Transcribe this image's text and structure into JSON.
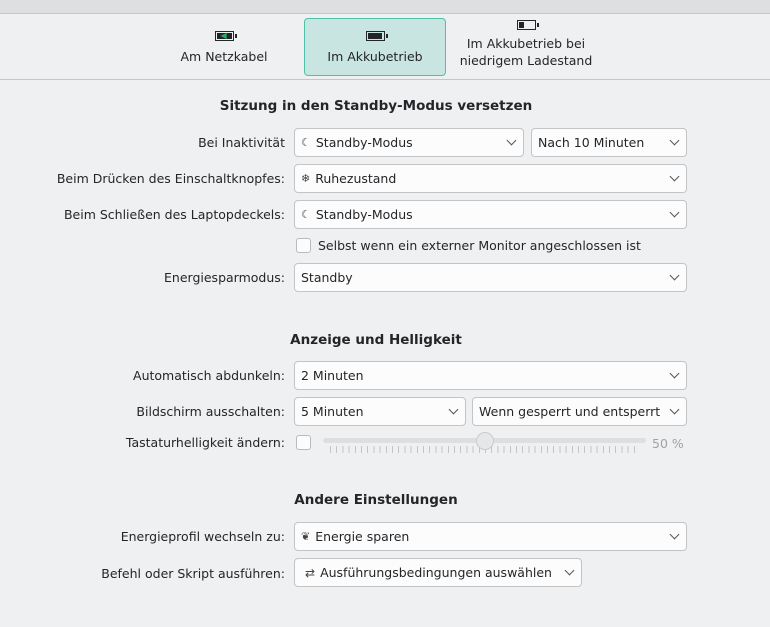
{
  "tabs": [
    {
      "label": "Am Netzkabel",
      "icon": "battery-charging-icon",
      "active": false
    },
    {
      "label": "Im Akkubetrieb",
      "icon": "battery-full-icon",
      "active": true
    },
    {
      "label": "Im Akkubetrieb bei niedrigem Ladestand",
      "icon": "battery-low-icon",
      "active": false
    }
  ],
  "sections": {
    "suspend": {
      "title": "Sitzung in den Standby-Modus versetzen",
      "inactivity_label": "Bei Inaktivität",
      "inactivity_action": "Standby-Modus",
      "inactivity_delay": "Nach 10 Minuten",
      "power_button_label": "Beim Drücken des Einschaltknopfes:",
      "power_button_action": "Ruhezustand",
      "lid_label": "Beim Schließen des Laptopdeckels:",
      "lid_action": "Standby-Modus",
      "external_monitor_label": "Selbst wenn ein externer Monitor angeschlossen ist",
      "external_monitor_checked": false,
      "sleep_mode_label": "Energiesparmodus:",
      "sleep_mode": "Standby"
    },
    "display": {
      "title": "Anzeige und Helligkeit",
      "dim_label": "Automatisch abdunkeln:",
      "dim_value": "2 Minuten",
      "screen_off_label": "Bildschirm ausschalten:",
      "screen_off_value": "5 Minuten",
      "screen_off_when": "Wenn gesperrt und entsperrt",
      "kbd_label": "Tastaturhelligkeit ändern:",
      "kbd_checked": false,
      "kbd_value": "50 %",
      "kbd_percent": 50
    },
    "other": {
      "title": "Andere Einstellungen",
      "profile_label": "Energieprofil wechseln zu:",
      "profile_value": "Energie sparen",
      "script_label": "Befehl oder Skript ausführen:",
      "script_value": "Ausführungsbedingungen auswählen"
    }
  },
  "colors": {
    "accent": "#4fc1a9",
    "active_tab_bg": "#c9e5e1",
    "charging": "#27ae60"
  }
}
